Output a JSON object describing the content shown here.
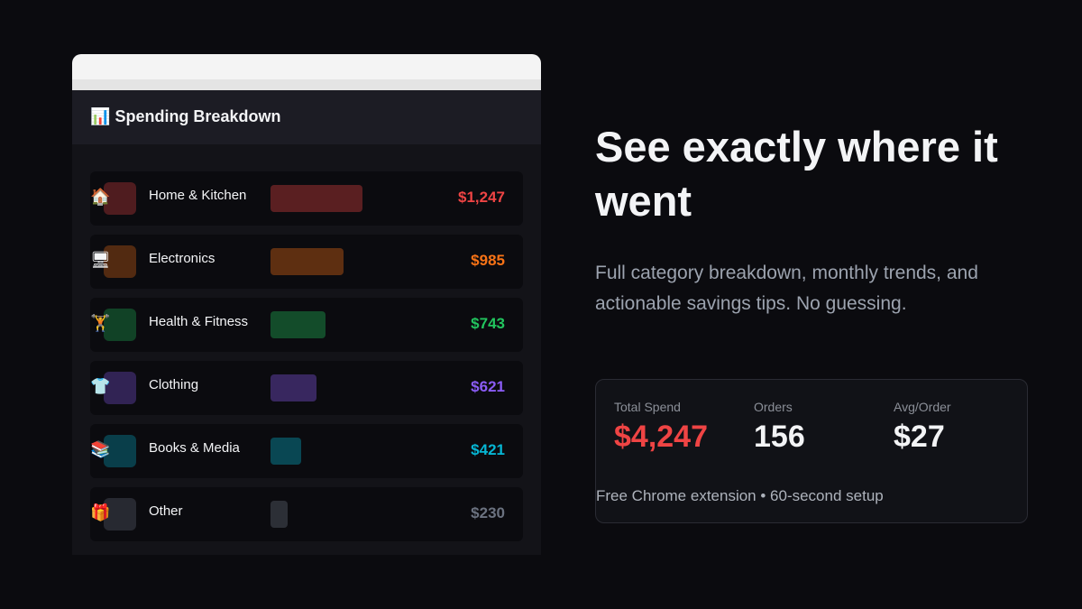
{
  "panel": {
    "icon": "📊",
    "title": "Spending Breakdown",
    "categories": [
      {
        "icon": "🏠",
        "name": "Home & Kitchen",
        "amount": 1247,
        "amount_label": "$1,247",
        "color": "#ef4444"
      },
      {
        "icon": "🖥",
        "name": "Electronics",
        "amount": 985,
        "amount_label": "$985",
        "color": "#f97316"
      },
      {
        "icon": "🏋",
        "name": "Health & Fitness",
        "amount": 743,
        "amount_label": "$743",
        "color": "#22c55e"
      },
      {
        "icon": "👕",
        "name": "Clothing",
        "amount": 621,
        "amount_label": "$621",
        "color": "#8b5cf6"
      },
      {
        "icon": "📚",
        "name": "Books & Media",
        "amount": 421,
        "amount_label": "$421",
        "color": "#06b6d4"
      },
      {
        "icon": "🎁",
        "name": "Other",
        "amount": 230,
        "amount_label": "$230",
        "color": "#6b7280"
      }
    ]
  },
  "hero": {
    "heading": "See exactly where it went",
    "subtitle": "Full category breakdown, monthly trends, and actionable savings tips. No guessing.",
    "stats": [
      {
        "label": "Total Spend",
        "value": "$4,247"
      },
      {
        "label": "Orders",
        "value": "156"
      },
      {
        "label": "Avg/Order",
        "value": "$27"
      }
    ],
    "footer": "Free Chrome extension • 60-second setup"
  }
}
